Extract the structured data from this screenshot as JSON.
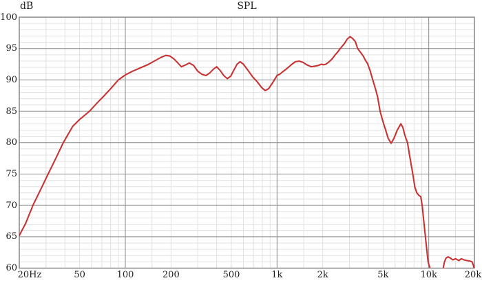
{
  "chart_data": {
    "type": "line",
    "title": "SPL",
    "ylabel": "dB",
    "x_axis": {
      "scale": "log",
      "min": 20,
      "max": 20000,
      "unit": "Hz",
      "ticks": [
        {
          "label": "20Hz",
          "value": 20,
          "dx": 15
        },
        {
          "label": "50",
          "value": 50,
          "dx": 0
        },
        {
          "label": "100",
          "value": 100,
          "dx": 0
        },
        {
          "label": "200",
          "value": 200,
          "dx": 0
        },
        {
          "label": "500",
          "value": 500,
          "dx": 0
        },
        {
          "label": "1k",
          "value": 1000,
          "dx": 0
        },
        {
          "label": "2k",
          "value": 2000,
          "dx": 0
        },
        {
          "label": "5k",
          "value": 5000,
          "dx": 0
        },
        {
          "label": "10k",
          "value": 10000,
          "dx": 0
        },
        {
          "label": "20k",
          "value": 20000,
          "dx": -2
        }
      ],
      "major_gridlines": [
        100,
        1000,
        10000
      ],
      "minor_mantissas": [
        1.5,
        2,
        3,
        4,
        5,
        6,
        7,
        8,
        9
      ]
    },
    "y_axis": {
      "min": 60,
      "max": 100,
      "major_step": 5,
      "minor_step": 1,
      "ticks": [
        {
          "label": "100",
          "value": 100
        },
        {
          "label": "95",
          "value": 95
        },
        {
          "label": "90",
          "value": 90
        },
        {
          "label": "85",
          "value": 85
        },
        {
          "label": "80",
          "value": 80
        },
        {
          "label": "75",
          "value": 75
        },
        {
          "label": "70",
          "value": 70
        },
        {
          "label": "65",
          "value": 65
        },
        {
          "label": "60",
          "value": 60
        }
      ]
    },
    "grid": {
      "minor_color": "#e0e0e0",
      "major_color": "#878787",
      "border_color": "#7d7d7d"
    },
    "text_color": "#1c1c1c",
    "series": [
      {
        "name": "SPL",
        "color": "#c83232",
        "points": [
          [
            20,
            65.2
          ],
          [
            22,
            67.1
          ],
          [
            24.6,
            70
          ],
          [
            27.5,
            72.4
          ],
          [
            31,
            75
          ],
          [
            35,
            77.6
          ],
          [
            39,
            80
          ],
          [
            45,
            82.6
          ],
          [
            50,
            83.7
          ],
          [
            58,
            85
          ],
          [
            65,
            86.3
          ],
          [
            72,
            87.4
          ],
          [
            80,
            88.6
          ],
          [
            90,
            90
          ],
          [
            100,
            90.8
          ],
          [
            112,
            91.4
          ],
          [
            125,
            91.9
          ],
          [
            140,
            92.4
          ],
          [
            158,
            93.1
          ],
          [
            172,
            93.6
          ],
          [
            185,
            93.9
          ],
          [
            197,
            93.8
          ],
          [
            210,
            93.3
          ],
          [
            222,
            92.7
          ],
          [
            234,
            92.1
          ],
          [
            250,
            92.4
          ],
          [
            264,
            92.7
          ],
          [
            282,
            92.3
          ],
          [
            300,
            91.4
          ],
          [
            320,
            90.9
          ],
          [
            340,
            90.7
          ],
          [
            360,
            91.1
          ],
          [
            380,
            91.7
          ],
          [
            400,
            92.1
          ],
          [
            422,
            91.5
          ],
          [
            445,
            90.7
          ],
          [
            470,
            90.2
          ],
          [
            495,
            90.6
          ],
          [
            520,
            91.6
          ],
          [
            545,
            92.5
          ],
          [
            570,
            92.9
          ],
          [
            600,
            92.5
          ],
          [
            640,
            91.6
          ],
          [
            690,
            90.5
          ],
          [
            740,
            89.7
          ],
          [
            790,
            88.8
          ],
          [
            835,
            88.3
          ],
          [
            880,
            88.6
          ],
          [
            920,
            89.3
          ],
          [
            960,
            90
          ],
          [
            1000,
            90.7
          ],
          [
            1040,
            90.9
          ],
          [
            1090,
            91.3
          ],
          [
            1160,
            91.8
          ],
          [
            1240,
            92.4
          ],
          [
            1320,
            92.9
          ],
          [
            1400,
            93
          ],
          [
            1480,
            92.8
          ],
          [
            1570,
            92.4
          ],
          [
            1680,
            92.1
          ],
          [
            1780,
            92.2
          ],
          [
            1870,
            92.3
          ],
          [
            1960,
            92.5
          ],
          [
            2030,
            92.4
          ],
          [
            2100,
            92.5
          ],
          [
            2180,
            92.8
          ],
          [
            2300,
            93.3
          ],
          [
            2400,
            93.9
          ],
          [
            2500,
            94.4
          ],
          [
            2650,
            95.2
          ],
          [
            2780,
            95.8
          ],
          [
            2900,
            96.5
          ],
          [
            3030,
            96.9
          ],
          [
            3150,
            96.6
          ],
          [
            3280,
            96.1
          ],
          [
            3400,
            95
          ],
          [
            3550,
            94.4
          ],
          [
            3700,
            93.8
          ],
          [
            3830,
            93.1
          ],
          [
            3950,
            92.6
          ],
          [
            4100,
            91.5
          ],
          [
            4250,
            90.2
          ],
          [
            4450,
            88.6
          ],
          [
            4600,
            87.3
          ],
          [
            4780,
            85
          ],
          [
            5000,
            83.3
          ],
          [
            5200,
            82
          ],
          [
            5400,
            80.7
          ],
          [
            5650,
            79.9
          ],
          [
            5900,
            80.7
          ],
          [
            6200,
            82
          ],
          [
            6550,
            83
          ],
          [
            6750,
            82.4
          ],
          [
            6950,
            81.2
          ],
          [
            7240,
            80
          ],
          [
            7500,
            77.8
          ],
          [
            7850,
            75
          ],
          [
            8100,
            72.9
          ],
          [
            8350,
            72
          ],
          [
            8600,
            71.6
          ],
          [
            8850,
            71.4
          ],
          [
            9050,
            70
          ],
          [
            9500,
            65
          ],
          [
            9900,
            61
          ],
          [
            10200,
            59.9
          ],
          [
            10500,
            57.5
          ],
          [
            11200,
            55.5
          ],
          [
            12000,
            56
          ],
          [
            12350,
            59
          ],
          [
            12500,
            60.2
          ],
          [
            12700,
            61
          ],
          [
            13000,
            61.6
          ],
          [
            13400,
            61.8
          ],
          [
            13900,
            61.6
          ],
          [
            14400,
            61.3
          ],
          [
            15000,
            61.5
          ],
          [
            15800,
            61.2
          ],
          [
            16400,
            61.5
          ],
          [
            17100,
            61.3
          ],
          [
            17900,
            61.2
          ],
          [
            18800,
            61.1
          ],
          [
            19300,
            61
          ],
          [
            19650,
            60.5
          ],
          [
            19950,
            59.8
          ]
        ]
      }
    ]
  }
}
